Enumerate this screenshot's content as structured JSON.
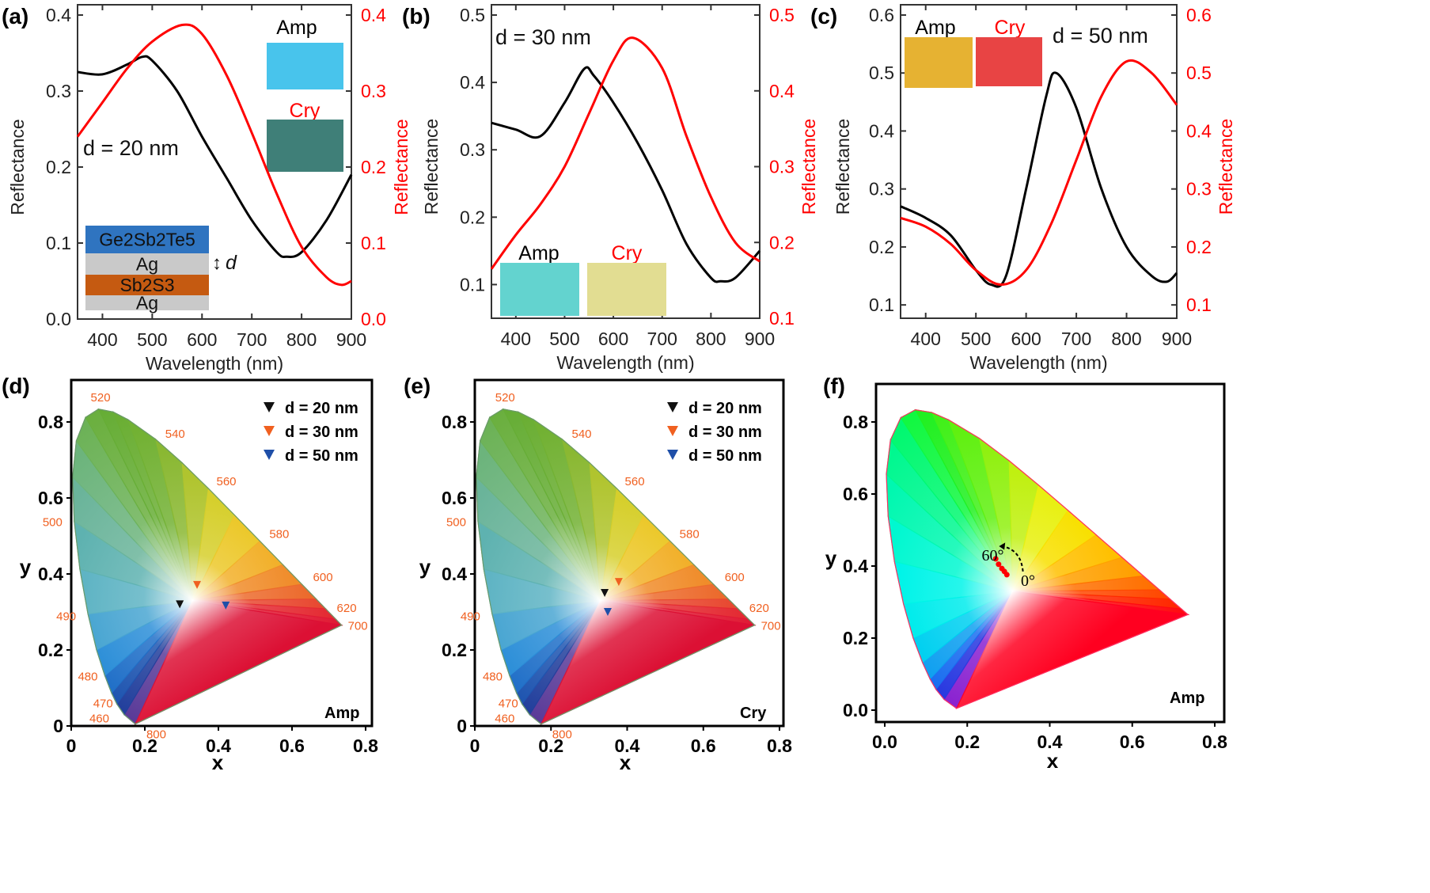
{
  "chart_data": [
    {
      "panel": "(a)",
      "type": "line",
      "xlabel": "Wavelength (nm)",
      "ylabel_left": "Reflectance",
      "ylabel_right": "Reflectance",
      "xlim": [
        350,
        900
      ],
      "ylim_left": [
        0.0,
        0.4
      ],
      "ylim_right": [
        0.0,
        0.4
      ],
      "xticks": [
        "400",
        "500",
        "600",
        "700",
        "800",
        "900"
      ],
      "yticks_left": [
        "0.0",
        "0.1",
        "0.2",
        "0.3",
        "0.4"
      ],
      "yticks_right": [
        "0.0",
        "0.1",
        "0.2",
        "0.3",
        "0.4"
      ],
      "annotation": "d = 20 nm",
      "series": [
        {
          "axis": "left",
          "color": "#000000",
          "x": [
            350,
            400,
            450,
            480,
            500,
            550,
            600,
            650,
            700,
            750,
            770,
            800,
            850,
            900
          ],
          "y": [
            0.325,
            0.322,
            0.335,
            0.345,
            0.34,
            0.3,
            0.24,
            0.185,
            0.13,
            0.088,
            0.082,
            0.088,
            0.13,
            0.19
          ]
        },
        {
          "axis": "right",
          "color": "#ff0000",
          "x": [
            350,
            400,
            450,
            500,
            560,
            600,
            650,
            700,
            750,
            800,
            850,
            880,
            900
          ],
          "y": [
            0.24,
            0.285,
            0.33,
            0.365,
            0.387,
            0.375,
            0.32,
            0.245,
            0.165,
            0.095,
            0.055,
            0.045,
            0.05
          ]
        }
      ],
      "insets": {
        "amp_label": "Amp",
        "cry_label": "Cry",
        "amp_color": "#48c4ec",
        "cry_color": "#3f7f78",
        "stack": [
          {
            "label": "Ge2Sb2Te5",
            "color": "#2f74c0"
          },
          {
            "label": "Ag",
            "color": "#c9c9c9"
          },
          {
            "label": "Sb2S3",
            "color": "#c55a11"
          },
          {
            "label": "Ag",
            "color": "#c9c9c9"
          }
        ],
        "thickness_label": "d"
      }
    },
    {
      "panel": "(b)",
      "type": "line",
      "xlabel": "Wavelength (nm)",
      "ylabel_left": "Reflectance",
      "ylabel_right": "Reflectance",
      "xlim": [
        350,
        900
      ],
      "ylim_left": [
        0.05,
        0.5
      ],
      "ylim_right": [
        0.1,
        0.5
      ],
      "xticks": [
        "400",
        "500",
        "600",
        "700",
        "800",
        "900"
      ],
      "yticks_left": [
        "0.1",
        "0.2",
        "0.3",
        "0.4",
        "0.5"
      ],
      "yticks_right": [
        "0.1",
        "0.2",
        "0.3",
        "0.4",
        "0.5"
      ],
      "annotation": "d = 30 nm",
      "series": [
        {
          "axis": "left",
          "color": "#000000",
          "x": [
            350,
            400,
            450,
            500,
            540,
            560,
            600,
            650,
            700,
            750,
            800,
            820,
            850,
            900
          ],
          "y": [
            0.34,
            0.33,
            0.32,
            0.37,
            0.42,
            0.41,
            0.37,
            0.31,
            0.24,
            0.16,
            0.11,
            0.105,
            0.11,
            0.15
          ]
        },
        {
          "axis": "right",
          "color": "#ff0000",
          "x": [
            350,
            400,
            450,
            500,
            550,
            600,
            640,
            700,
            750,
            800,
            850,
            900
          ],
          "y": [
            0.165,
            0.21,
            0.25,
            0.3,
            0.37,
            0.44,
            0.47,
            0.43,
            0.34,
            0.26,
            0.2,
            0.175
          ]
        }
      ],
      "insets": {
        "amp_label": "Amp",
        "cry_label": "Cry",
        "amp_color": "#63d3cf",
        "cry_color": "#e2dd92"
      }
    },
    {
      "panel": "(c)",
      "type": "line",
      "xlabel": "Wavelength (nm)",
      "ylabel_left": "Reflectance",
      "ylabel_right": "Reflectance",
      "xlim": [
        350,
        900
      ],
      "ylim_left": [
        0.077,
        0.6
      ],
      "ylim_right": [
        0.077,
        0.6
      ],
      "xticks": [
        "400",
        "500",
        "600",
        "700",
        "800",
        "900"
      ],
      "yticks_left": [
        "0.1",
        "0.2",
        "0.3",
        "0.4",
        "0.5",
        "0.6"
      ],
      "yticks_right": [
        "0.1",
        "0.2",
        "0.3",
        "0.4",
        "0.5",
        "0.6"
      ],
      "annotation": "d = 50 nm",
      "series": [
        {
          "axis": "left",
          "color": "#000000",
          "x": [
            350,
            400,
            450,
            500,
            530,
            560,
            600,
            640,
            660,
            700,
            750,
            800,
            850,
            880,
            900
          ],
          "y": [
            0.27,
            0.25,
            0.22,
            0.16,
            0.135,
            0.15,
            0.3,
            0.46,
            0.5,
            0.44,
            0.3,
            0.2,
            0.15,
            0.14,
            0.155
          ]
        },
        {
          "axis": "right",
          "color": "#ff0000",
          "x": [
            350,
            400,
            450,
            500,
            550,
            600,
            650,
            700,
            750,
            800,
            850,
            900
          ],
          "y": [
            0.25,
            0.235,
            0.205,
            0.16,
            0.135,
            0.16,
            0.24,
            0.35,
            0.46,
            0.52,
            0.5,
            0.445
          ]
        }
      ],
      "insets": {
        "amp_label": "Amp",
        "cry_label": "Cry",
        "amp_color": "#e6b232",
        "cry_color": "#e84444"
      }
    },
    {
      "panel": "(d)",
      "type": "scatter",
      "xlabel": "x",
      "ylabel": "y",
      "xlim": [
        0,
        0.8
      ],
      "ylim": [
        0,
        0.8
      ],
      "xticks": [
        "0",
        "0.2",
        "0.4",
        "0.6",
        "0.8"
      ],
      "yticks": [
        "0",
        "0.2",
        "0.4",
        "0.6",
        "0.8"
      ],
      "corner_label": "Amp",
      "wavelength_labels": [
        "520",
        "540",
        "560",
        "580",
        "600",
        "620",
        "700",
        "500",
        "490",
        "480",
        "470",
        "460",
        "800"
      ],
      "series": [
        {
          "name": "d = 20 nm",
          "color": "#111111",
          "x": [
            0.295
          ],
          "y": [
            0.32
          ]
        },
        {
          "name": "d = 30 nm",
          "color": "#f06020",
          "x": [
            0.342
          ],
          "y": [
            0.371
          ]
        },
        {
          "name": "d = 50 nm",
          "color": "#1f4fa8",
          "x": [
            0.42
          ],
          "y": [
            0.317
          ]
        }
      ],
      "legend": "top-right"
    },
    {
      "panel": "(e)",
      "type": "scatter",
      "xlabel": "x",
      "ylabel": "y",
      "xlim": [
        0,
        0.8
      ],
      "ylim": [
        0,
        0.8
      ],
      "xticks": [
        "0",
        "0.2",
        "0.4",
        "0.6",
        "0.8"
      ],
      "yticks": [
        "0",
        "0.2",
        "0.4",
        "0.6",
        "0.8"
      ],
      "corner_label": "Cry",
      "wavelength_labels": [
        "520",
        "540",
        "560",
        "580",
        "600",
        "620",
        "700",
        "500",
        "490",
        "480",
        "470",
        "460",
        "800"
      ],
      "series": [
        {
          "name": "d = 20 nm",
          "color": "#111111",
          "x": [
            0.341
          ],
          "y": [
            0.35
          ]
        },
        {
          "name": "d = 30 nm",
          "color": "#f06020",
          "x": [
            0.378
          ],
          "y": [
            0.379
          ]
        },
        {
          "name": "d = 50 nm",
          "color": "#1f4fa8",
          "x": [
            0.349
          ],
          "y": [
            0.3
          ]
        }
      ],
      "legend": "top-right"
    },
    {
      "panel": "(f)",
      "type": "scatter",
      "xlabel": "x",
      "ylabel": "y",
      "xlim": [
        0,
        0.8
      ],
      "ylim": [
        0,
        0.8
      ],
      "xticks": [
        "0.0",
        "0.2",
        "0.4",
        "0.6",
        "0.8"
      ],
      "yticks": [
        "0.0",
        "0.2",
        "0.4",
        "0.6",
        "0.8"
      ],
      "corner_label": "Amp",
      "angle_labels": {
        "start": "0°",
        "end": "60°"
      },
      "series": [
        {
          "color": "#ff0000",
          "x": [
            0.269,
            0.276,
            0.284,
            0.29,
            0.296
          ],
          "y": [
            0.42,
            0.405,
            0.393,
            0.385,
            0.376
          ]
        }
      ]
    }
  ]
}
